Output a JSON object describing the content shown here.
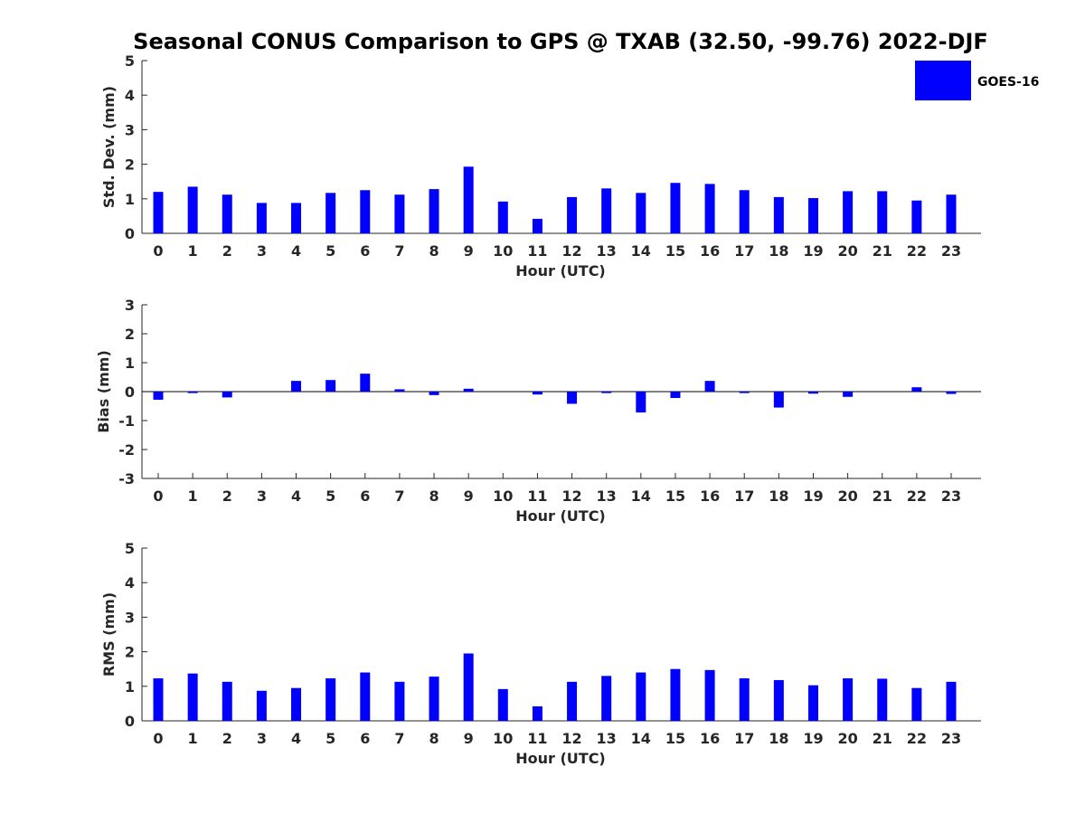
{
  "figure": {
    "title": "Seasonal CONUS Comparison to GPS @ TXAB (32.50, -99.76) 2022-DJF"
  },
  "legend": {
    "label": "GOES-16",
    "color": "#0000ff"
  },
  "chart_data": [
    {
      "type": "bar",
      "xlabel": "Hour (UTC)",
      "ylabel": "Std. Dev. (mm)",
      "ylim": [
        0,
        5
      ],
      "yticks": [
        "0",
        "1",
        "2",
        "3",
        "4",
        "5"
      ],
      "categories": [
        "0",
        "1",
        "2",
        "3",
        "4",
        "5",
        "6",
        "7",
        "8",
        "9",
        "10",
        "11",
        "12",
        "13",
        "14",
        "15",
        "16",
        "17",
        "18",
        "19",
        "20",
        "21",
        "22",
        "23"
      ],
      "series": [
        {
          "name": "GOES-16",
          "color": "#0000ff",
          "values": [
            1.2,
            1.35,
            1.12,
            0.88,
            0.88,
            1.17,
            1.25,
            1.12,
            1.28,
            1.93,
            0.92,
            0.42,
            1.05,
            1.3,
            1.17,
            1.46,
            1.43,
            1.25,
            1.05,
            1.02,
            1.22,
            1.22,
            0.95,
            1.12
          ]
        }
      ]
    },
    {
      "type": "bar",
      "xlabel": "Hour (UTC)",
      "ylabel": "Bias (mm)",
      "ylim": [
        -3,
        3
      ],
      "yticks": [
        "-3",
        "-2",
        "-1",
        "0",
        "1",
        "2",
        "3"
      ],
      "categories": [
        "0",
        "1",
        "2",
        "3",
        "4",
        "5",
        "6",
        "7",
        "8",
        "9",
        "10",
        "11",
        "12",
        "13",
        "14",
        "15",
        "16",
        "17",
        "18",
        "19",
        "20",
        "21",
        "22",
        "23"
      ],
      "series": [
        {
          "name": "GOES-16",
          "color": "#0000ff",
          "values": [
            -0.28,
            -0.05,
            -0.2,
            0.0,
            0.37,
            0.4,
            0.62,
            0.08,
            -0.12,
            0.1,
            0.0,
            -0.1,
            -0.42,
            -0.05,
            -0.72,
            -0.22,
            0.37,
            -0.05,
            -0.55,
            -0.07,
            -0.18,
            0.0,
            0.15,
            -0.08
          ]
        }
      ]
    },
    {
      "type": "bar",
      "xlabel": "Hour (UTC)",
      "ylabel": "RMS (mm)",
      "ylim": [
        0,
        5
      ],
      "yticks": [
        "0",
        "1",
        "2",
        "3",
        "4",
        "5"
      ],
      "categories": [
        "0",
        "1",
        "2",
        "3",
        "4",
        "5",
        "6",
        "7",
        "8",
        "9",
        "10",
        "11",
        "12",
        "13",
        "14",
        "15",
        "16",
        "17",
        "18",
        "19",
        "20",
        "21",
        "22",
        "23"
      ],
      "series": [
        {
          "name": "GOES-16",
          "color": "#0000ff",
          "values": [
            1.23,
            1.37,
            1.13,
            0.87,
            0.95,
            1.23,
            1.4,
            1.13,
            1.28,
            1.95,
            0.92,
            0.42,
            1.13,
            1.3,
            1.4,
            1.5,
            1.47,
            1.23,
            1.18,
            1.03,
            1.23,
            1.22,
            0.95,
            1.13
          ]
        }
      ]
    }
  ]
}
